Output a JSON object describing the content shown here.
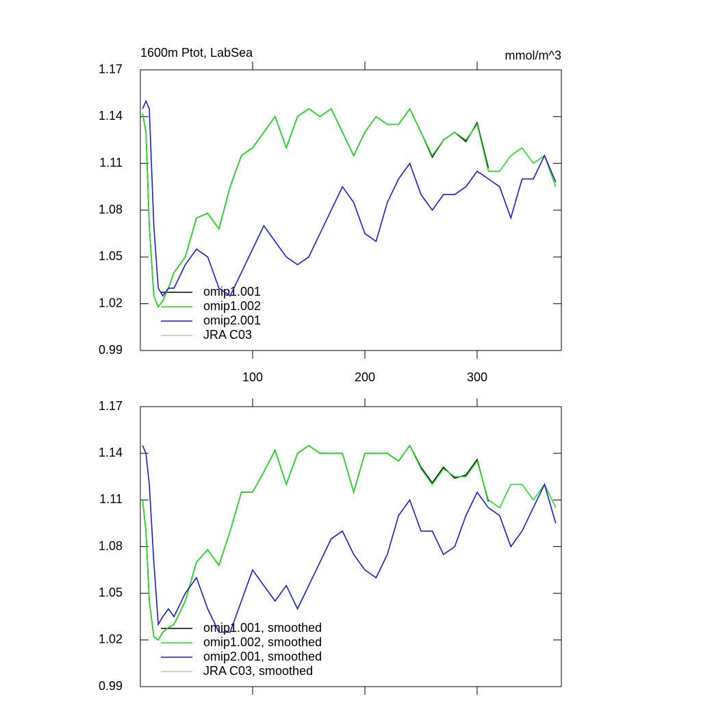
{
  "chart_data": [
    {
      "type": "line",
      "title": "1600m Ptot, LabSea",
      "units": "mmol/m^3",
      "x": [
        2,
        5,
        8,
        12,
        16,
        20,
        25,
        30,
        40,
        50,
        60,
        70,
        80,
        90,
        100,
        110,
        120,
        130,
        140,
        150,
        160,
        170,
        180,
        190,
        200,
        210,
        220,
        230,
        240,
        250,
        260,
        270,
        280,
        290,
        300,
        310,
        320,
        330,
        340,
        350,
        360,
        370
      ],
      "xlim": [
        0,
        375
      ],
      "xticks": [
        100,
        200,
        300
      ],
      "show_xtick_labels": true,
      "ylim": [
        0.99,
        1.17
      ],
      "yticks": [
        0.99,
        1.02,
        1.05,
        1.08,
        1.11,
        1.14,
        1.17
      ],
      "series": [
        {
          "name": "omip1.001",
          "color": "#000000",
          "values": [
            1.142,
            1.13,
            1.07,
            1.025,
            1.018,
            1.022,
            1.03,
            1.04,
            1.05,
            1.075,
            1.078,
            1.068,
            1.095,
            1.115,
            1.12,
            1.13,
            1.14,
            1.12,
            1.14,
            1.145,
            1.14,
            1.145,
            1.13,
            1.115,
            1.13,
            1.14,
            1.135,
            1.135,
            1.145,
            1.13,
            1.114,
            1.125,
            1.13,
            1.124,
            1.136,
            1.107,
            null,
            null,
            null,
            null,
            null,
            null
          ]
        },
        {
          "name": "omip1.002",
          "color": "#22dd22",
          "values": [
            1.142,
            1.13,
            1.07,
            1.025,
            1.018,
            1.022,
            1.03,
            1.04,
            1.05,
            1.075,
            1.078,
            1.068,
            1.095,
            1.115,
            1.12,
            1.13,
            1.14,
            1.12,
            1.14,
            1.145,
            1.14,
            1.145,
            1.13,
            1.115,
            1.13,
            1.14,
            1.135,
            1.135,
            1.145,
            1.13,
            1.115,
            1.125,
            1.13,
            1.125,
            1.135,
            1.105,
            1.105,
            1.115,
            1.12,
            1.11,
            1.115,
            1.095
          ]
        },
        {
          "name": "omip2.001",
          "color": "#1a1ad0",
          "values": [
            1.145,
            1.15,
            1.145,
            1.07,
            1.03,
            1.025,
            1.03,
            1.03,
            1.045,
            1.055,
            1.05,
            1.03,
            1.025,
            1.04,
            1.055,
            1.07,
            1.06,
            1.05,
            1.045,
            1.05,
            1.065,
            1.08,
            1.095,
            1.085,
            1.065,
            1.06,
            1.085,
            1.1,
            1.11,
            1.09,
            1.08,
            1.09,
            1.09,
            1.095,
            1.105,
            1.1,
            1.095,
            1.075,
            1.1,
            1.1,
            1.115,
            1.098
          ]
        },
        {
          "name": "JRA C03",
          "color": "#c0c0c0",
          "values": [
            null,
            null,
            null,
            null,
            null,
            null,
            null,
            null,
            null,
            null,
            null,
            null,
            null,
            null,
            null,
            null,
            null,
            null,
            null,
            null,
            null,
            null,
            null,
            null,
            null,
            null,
            null,
            null,
            null,
            null,
            null,
            null,
            null,
            null,
            null,
            null,
            null,
            null,
            null,
            null,
            null,
            null
          ]
        }
      ]
    },
    {
      "type": "line",
      "x": [
        2,
        5,
        8,
        12,
        16,
        20,
        25,
        30,
        40,
        50,
        60,
        70,
        80,
        90,
        100,
        110,
        120,
        130,
        140,
        150,
        160,
        170,
        180,
        190,
        200,
        210,
        220,
        230,
        240,
        250,
        260,
        270,
        280,
        290,
        300,
        310,
        320,
        330,
        340,
        350,
        360,
        370
      ],
      "xlim": [
        0,
        375
      ],
      "xticks": [
        100,
        200,
        300
      ],
      "show_xtick_labels": false,
      "ylim": [
        0.99,
        1.17
      ],
      "yticks": [
        0.99,
        1.02,
        1.05,
        1.08,
        1.11,
        1.14,
        1.17
      ],
      "series": [
        {
          "name": "omip1.001, smoothed",
          "color": "#000000",
          "values": [
            1.11,
            1.09,
            1.045,
            1.022,
            1.02,
            1.025,
            1.028,
            1.03,
            1.045,
            1.07,
            1.078,
            1.068,
            1.09,
            1.115,
            1.115,
            1.128,
            1.142,
            1.12,
            1.14,
            1.145,
            1.14,
            1.14,
            1.14,
            1.115,
            1.14,
            1.14,
            1.14,
            1.135,
            1.145,
            1.131,
            1.121,
            1.131,
            1.124,
            1.126,
            1.136,
            1.109,
            null,
            null,
            null,
            null,
            null,
            null
          ]
        },
        {
          "name": "omip1.002, smoothed",
          "color": "#22dd22",
          "values": [
            1.11,
            1.09,
            1.045,
            1.022,
            1.02,
            1.025,
            1.028,
            1.03,
            1.045,
            1.07,
            1.078,
            1.068,
            1.09,
            1.115,
            1.115,
            1.128,
            1.142,
            1.12,
            1.14,
            1.145,
            1.14,
            1.14,
            1.14,
            1.115,
            1.14,
            1.14,
            1.14,
            1.135,
            1.145,
            1.13,
            1.12,
            1.13,
            1.125,
            1.125,
            1.135,
            1.11,
            1.105,
            1.12,
            1.12,
            1.11,
            1.12,
            1.105
          ]
        },
        {
          "name": "omip2.001, smoothed",
          "color": "#1a1ad0",
          "values": [
            1.145,
            1.14,
            1.12,
            1.07,
            1.03,
            1.035,
            1.04,
            1.035,
            1.05,
            1.06,
            1.04,
            1.025,
            1.025,
            1.045,
            1.065,
            1.055,
            1.045,
            1.055,
            1.04,
            1.055,
            1.07,
            1.085,
            1.09,
            1.075,
            1.065,
            1.06,
            1.075,
            1.1,
            1.11,
            1.09,
            1.09,
            1.075,
            1.08,
            1.1,
            1.115,
            1.105,
            1.1,
            1.08,
            1.09,
            1.105,
            1.12,
            1.095
          ]
        },
        {
          "name": "JRA C03, smoothed",
          "color": "#c0c0c0",
          "values": [
            null,
            null,
            null,
            null,
            null,
            null,
            null,
            null,
            null,
            null,
            null,
            null,
            null,
            null,
            null,
            null,
            null,
            null,
            null,
            null,
            null,
            null,
            null,
            null,
            null,
            null,
            null,
            null,
            null,
            null,
            null,
            null,
            null,
            null,
            null,
            null,
            null,
            null,
            null,
            null,
            null,
            null
          ]
        }
      ]
    }
  ]
}
